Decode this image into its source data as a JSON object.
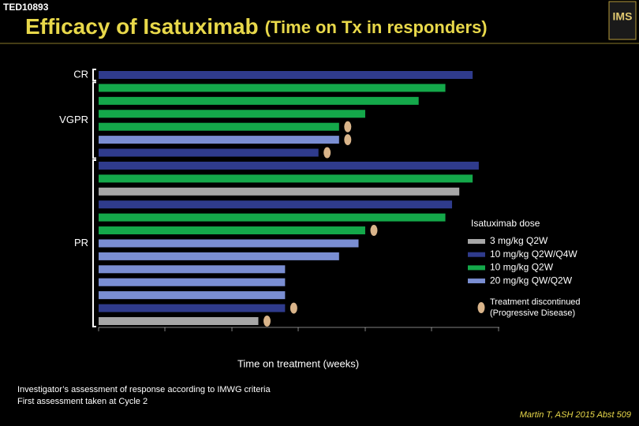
{
  "header": "TED10893",
  "logo": "IMS",
  "chart_data": {
    "type": "barh",
    "title": "Efficacy of Isatuximab",
    "subtitle": "(Time on Tx in responders)",
    "x_label": "Time on treatment (weeks)",
    "xlim": [
      0,
      72
    ],
    "legend_title": "Isatuximab dose",
    "series": [
      {
        "name": "3 mg/kg Q2W",
        "color": "#a6a6a6"
      },
      {
        "name": "10 mg/kg Q2W/Q4W",
        "color": "#2f3b8c"
      },
      {
        "name": "10 mg/kg Q2W",
        "color": "#14a84a"
      },
      {
        "name": "20 mg/kg QW/Q2W",
        "color": "#7a8ed2"
      }
    ],
    "marker_legend": [
      "Treatment discontinued",
      "(Progressive Disease)"
    ],
    "marker_color": "#d9b48a",
    "groups": [
      {
        "label": "CR",
        "first": 0,
        "last": 0
      },
      {
        "label": "VGPR",
        "first": 1,
        "last": 6
      },
      {
        "label": "PR",
        "first": 7,
        "last": 19
      }
    ],
    "bars": [
      {
        "dose": 1,
        "value": 67.2,
        "discontinued": false
      },
      {
        "dose": 2,
        "value": 62.3,
        "discontinued": false
      },
      {
        "dose": 2,
        "value": 57.5,
        "discontinued": false
      },
      {
        "dose": 2,
        "value": 47.9,
        "discontinued": false
      },
      {
        "dose": 2,
        "value": 43.2,
        "discontinued": true
      },
      {
        "dose": 3,
        "value": 43.2,
        "discontinued": true
      },
      {
        "dose": 1,
        "value": 39.5,
        "discontinued": true
      },
      {
        "dose": 1,
        "value": 68.3,
        "discontinued": false
      },
      {
        "dose": 2,
        "value": 67.2,
        "discontinued": false
      },
      {
        "dose": 0,
        "value": 64.8,
        "discontinued": false
      },
      {
        "dose": 1,
        "value": 63.5,
        "discontinued": false
      },
      {
        "dose": 2,
        "value": 62.3,
        "discontinued": false
      },
      {
        "dose": 2,
        "value": 47.9,
        "discontinued": true
      },
      {
        "dose": 3,
        "value": 46.7,
        "discontinued": false
      },
      {
        "dose": 3,
        "value": 43.2,
        "discontinued": false
      },
      {
        "dose": 3,
        "value": 33.5,
        "discontinued": false
      },
      {
        "dose": 3,
        "value": 33.5,
        "discontinued": false
      },
      {
        "dose": 3,
        "value": 33.5,
        "discontinued": false
      },
      {
        "dose": 1,
        "value": 33.5,
        "discontinued": true
      },
      {
        "dose": 0,
        "value": 28.7,
        "discontinued": true
      }
    ]
  },
  "footnotes": [
    "Investigator’s assessment of response according to IMWG criteria",
    "First assessment taken at Cycle 2"
  ],
  "citation": "Martin T, ASH 2015 Abst 509"
}
